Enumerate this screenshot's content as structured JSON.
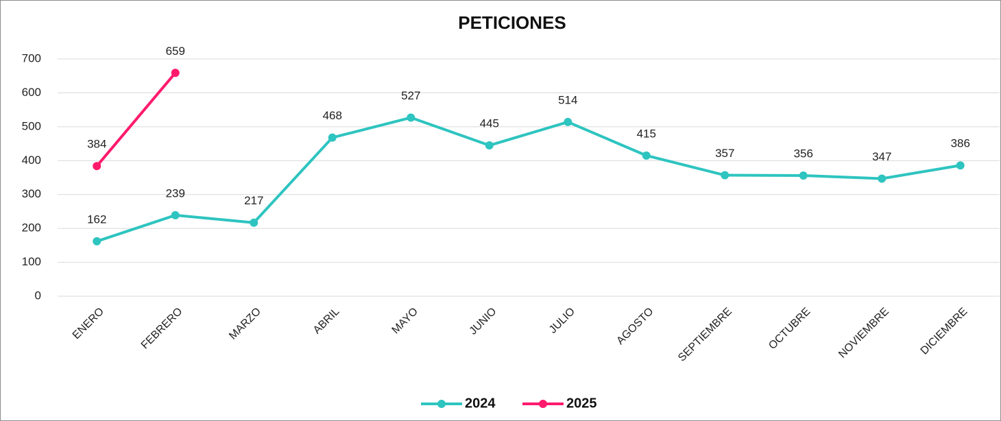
{
  "chart_data": {
    "type": "line",
    "title": "PETICIONES",
    "categories": [
      "ENERO",
      "FEBRERO",
      "MARZO",
      "ABRIL",
      "MAYO",
      "JUNIO",
      "JULIO",
      "AGOSTO",
      "SEPTIEMBRE",
      "OCTUBRE",
      "NOVIEMBRE",
      "DICIEMBRE"
    ],
    "series": [
      {
        "name": "2024",
        "color": "#2ec4c0",
        "values": [
          162,
          239,
          217,
          468,
          527,
          445,
          514,
          415,
          357,
          356,
          347,
          386
        ]
      },
      {
        "name": "2025",
        "color": "#ff1a6c",
        "values": [
          384,
          659,
          null,
          null,
          null,
          null,
          null,
          null,
          null,
          null,
          null,
          null
        ]
      }
    ],
    "ylim": [
      0,
      700
    ],
    "yticks": [
      0,
      100,
      200,
      300,
      400,
      500,
      600,
      700
    ],
    "grid": true,
    "legend": "bottom"
  }
}
